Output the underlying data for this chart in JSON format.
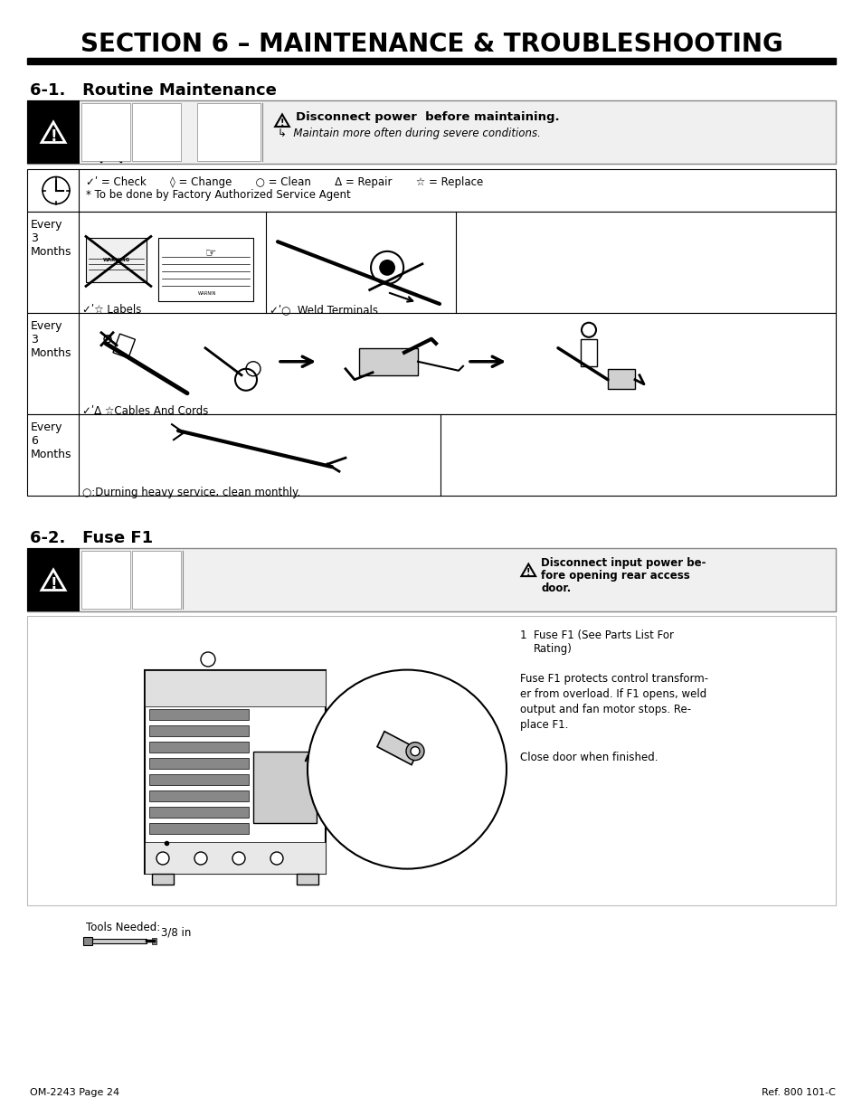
{
  "bg_color": "#ffffff",
  "title": "SECTION 6 – MAINTENANCE & TROUBLESHOOTING",
  "section1_heading": "6-1.   Routine Maintenance",
  "section2_heading": "6-2.   Fuse F1",
  "footer_left": "OM-2243 Page 24",
  "footer_right": "Ref. 800 101-C",
  "legend_line1": "✓ʹ = Check       ◊ = Change       ○ = Clean       Δ = Repair       ☆ = Replace",
  "legend_line2": "* To be done by Factory Authorized Service Agent",
  "row1_label": "Every\n3\nMonths",
  "row2_label": "Every\n3\nMonths",
  "row3_label": "Every\n6\nMonths",
  "row1_text1": "✓ʹ☆ Labels",
  "row1_text2": "✓ʹ○  Weld Terminals",
  "row2_text": "✓ʹΔ ☆Cables And Cords",
  "row3_text": "○:Durning heavy service, clean monthly.",
  "warn_bold": "Disconnect power  before maintaining.",
  "warn_italic": "Maintain more often during severe conditions.",
  "fuse_warn_bold_l1": "Disconnect input power be-",
  "fuse_warn_bold_l2": "fore opening rear access",
  "fuse_warn_bold_l3": "door.",
  "fuse_item1_num": "1",
  "fuse_item1_text": "Fuse F1 (See Parts List For\nRating)",
  "fuse_text1": "Fuse F1 protects control transform-\ner from overload. If F1 opens, weld\noutput and fan motor stops. Re-\nplace F1.",
  "fuse_text2": "Close door when finished.",
  "tools_label": "Tools Needed:",
  "tools_size": "3/8 in"
}
